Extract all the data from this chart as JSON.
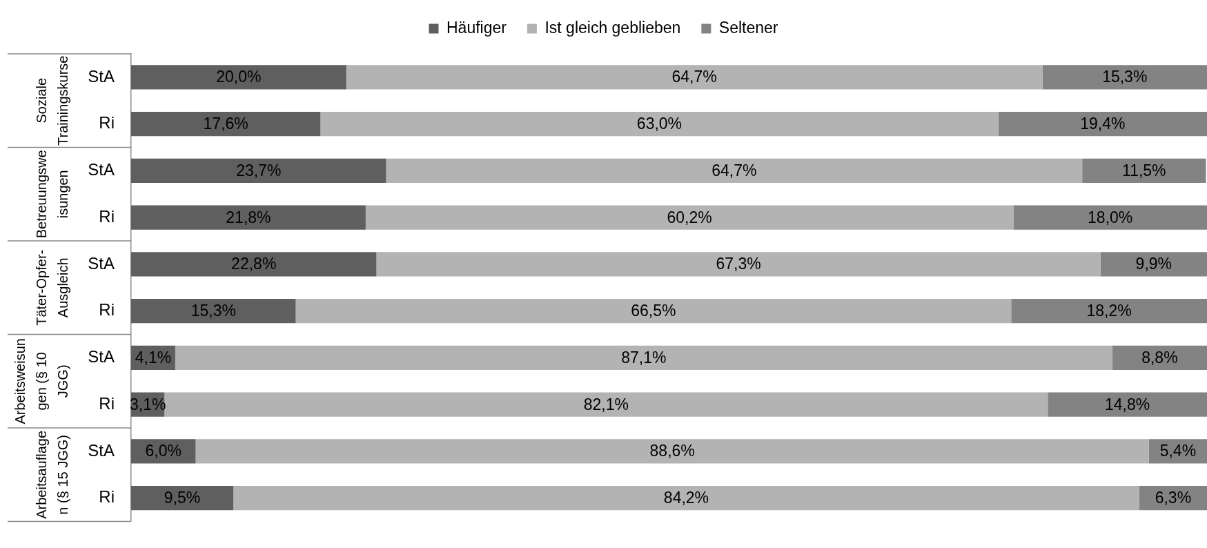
{
  "chart_data": {
    "type": "bar",
    "orientation": "horizontal",
    "stacked": true,
    "categories": [
      "StA",
      "Ri",
      "StA",
      "Ri",
      "StA",
      "Ri",
      "StA",
      "Ri",
      "StA",
      "Ri"
    ],
    "series": [
      {
        "name": "Häufiger",
        "color": "#5f5f5f",
        "values": [
          20.0,
          17.6,
          23.7,
          21.8,
          22.8,
          15.3,
          4.1,
          3.1,
          6.0,
          9.5
        ],
        "value_labels": [
          "20,0%",
          "17,6%",
          "23,7%",
          "21,8%",
          "22,8%",
          "15,3%",
          "4,1%",
          "3,1%",
          "6,0%",
          "9,5%"
        ]
      },
      {
        "name": "Ist gleich geblieben",
        "color": "#b3b3b3",
        "values": [
          64.7,
          63.0,
          64.7,
          60.2,
          67.3,
          66.5,
          87.1,
          82.1,
          88.6,
          84.2
        ],
        "value_labels": [
          "64,7%",
          "63,0%",
          "64,7%",
          "60,2%",
          "67,3%",
          "66,5%",
          "87,1%",
          "82,1%",
          "88,6%",
          "84,2%"
        ]
      },
      {
        "name": "Seltener",
        "color": "#838383",
        "values": [
          15.3,
          19.4,
          11.5,
          18.0,
          9.9,
          18.2,
          8.8,
          14.8,
          5.4,
          6.3
        ],
        "value_labels": [
          "15,3%",
          "19,4%",
          "11,5%",
          "18,0%",
          "9,9%",
          "18,2%",
          "8,8%",
          "14,8%",
          "5,4%",
          "6,3%"
        ]
      }
    ],
    "xlim": [
      0,
      100
    ],
    "tick_labels": "y",
    "legend": "top",
    "annotations": [
      "Soziale\nTrainingskurse",
      "Betreuungswe\nisungen",
      "Täter-Opfer-\nAusgleich",
      "Arbeitsweisun\ngen (§ 10\nJGG)",
      "Arbeitsauflage\nn (§ 15 JGG)"
    ]
  }
}
